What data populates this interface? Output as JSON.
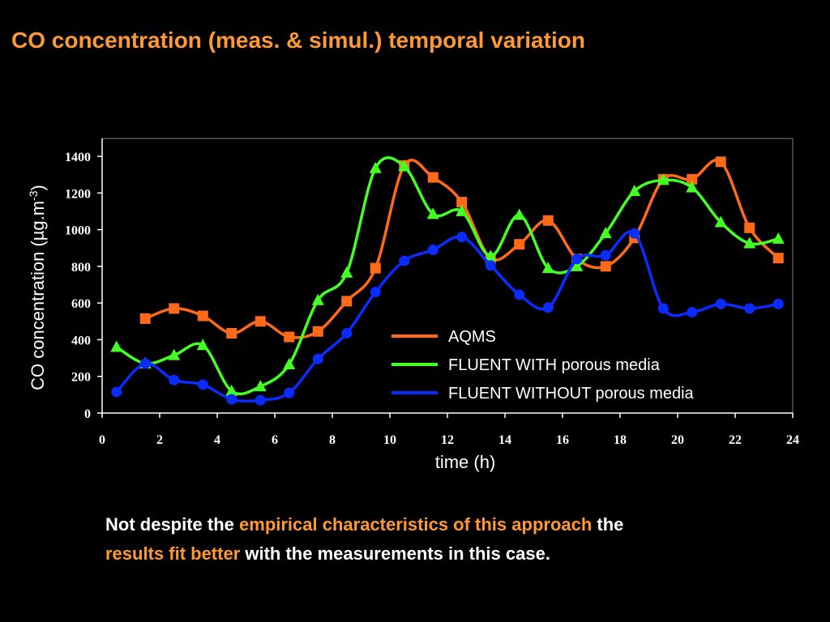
{
  "title": "CO concentration (meas. & simul.) temporal variation",
  "caption": {
    "part1": "Not despite the ",
    "highlight1": "empirical characteristics of this approach",
    "part2": " the ",
    "highlight2": "results fit better",
    "part3": " with the measurements in this case."
  },
  "colors": {
    "title": "#FF9933",
    "aqms": "#FF6A1A",
    "with": "#44FF22",
    "without": "#0A2CFF"
  },
  "chart_data": {
    "type": "line",
    "xlabel": "time (h)",
    "ylabel_main": "CO concentration (µg.m",
    "ylabel_sup": "-3",
    "ylabel_close": ")",
    "xlim": [
      0,
      24
    ],
    "ylim": [
      0,
      1400
    ],
    "xticks": [
      0,
      2,
      4,
      6,
      8,
      10,
      12,
      14,
      16,
      18,
      20,
      22,
      24
    ],
    "yticks": [
      0,
      200,
      400,
      600,
      800,
      1000,
      1200,
      1400
    ],
    "grid": false,
    "legend_position": "lower-right (inside plot)",
    "series": [
      {
        "name": "AQMS",
        "color": "#FF6A1A",
        "marker": "square",
        "x": [
          1.5,
          2.5,
          3.5,
          4.5,
          5.5,
          6.5,
          7.5,
          8.5,
          9.5,
          10.5,
          11.5,
          12.5,
          13.5,
          14.5,
          15.5,
          16.5,
          17.5,
          18.5,
          19.5,
          20.5,
          21.5,
          22.5,
          23.5
        ],
        "y": [
          515,
          570,
          530,
          435,
          500,
          415,
          445,
          610,
          790,
          1350,
          1285,
          1150,
          845,
          920,
          1050,
          840,
          800,
          955,
          1275,
          1275,
          1370,
          1010,
          845
        ]
      },
      {
        "name": "FLUENT WITH porous media",
        "color": "#44FF22",
        "marker": "triangle",
        "x": [
          0.5,
          1.5,
          2.5,
          3.5,
          4.5,
          5.5,
          6.5,
          7.5,
          8.5,
          9.5,
          10.5,
          11.5,
          12.5,
          13.5,
          14.5,
          15.5,
          16.5,
          17.5,
          18.5,
          19.5,
          20.5,
          21.5,
          22.5,
          23.5
        ],
        "y": [
          360,
          270,
          315,
          370,
          120,
          145,
          265,
          615,
          765,
          1335,
          1345,
          1085,
          1100,
          855,
          1080,
          790,
          800,
          980,
          1210,
          1270,
          1230,
          1040,
          925,
          950
        ]
      },
      {
        "name": "FLUENT WITHOUT porous media",
        "color": "#0A2CFF",
        "marker": "circle",
        "x": [
          0.5,
          1.5,
          2.5,
          3.5,
          4.5,
          5.5,
          6.5,
          7.5,
          8.5,
          9.5,
          10.5,
          11.5,
          12.5,
          13.5,
          14.5,
          15.5,
          16.5,
          17.5,
          18.5,
          19.5,
          20.5,
          21.5,
          22.5,
          23.5
        ],
        "y": [
          115,
          270,
          180,
          155,
          75,
          70,
          110,
          295,
          435,
          660,
          830,
          890,
          960,
          805,
          645,
          575,
          840,
          860,
          980,
          570,
          550,
          595,
          570,
          595
        ]
      }
    ]
  }
}
